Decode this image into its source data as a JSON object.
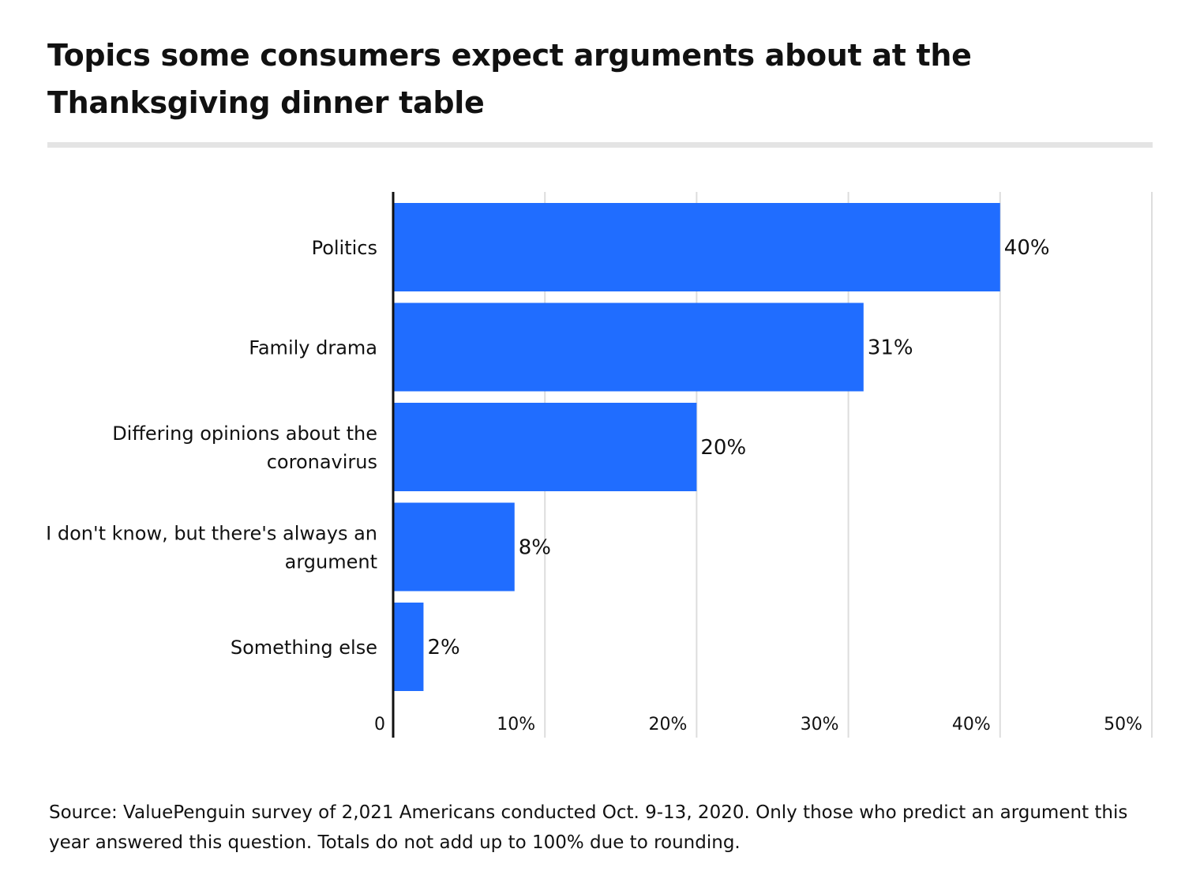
{
  "title": "Topics some consumers expect arguments about at the Thanksgiving dinner table",
  "source_note": "Source: ValuePenguin survey of 2,021 Americans conducted Oct. 9-13, 2020. Only those who predict an argument this year answered this question. Totals do not add up to 100% due to rounding.",
  "colors": {
    "bar": "#206dff",
    "grid": "#dddddd",
    "axis": "#111111",
    "rule": "#e4e4e4"
  },
  "chart_data": {
    "type": "bar",
    "orientation": "horizontal",
    "categories": [
      [
        "Politics"
      ],
      [
        "Family drama"
      ],
      [
        "Differing opinions about the",
        "coronavirus"
      ],
      [
        "I don't know, but there's always an",
        "argument"
      ],
      [
        "Something else"
      ]
    ],
    "values": [
      40,
      31,
      20,
      8,
      2
    ],
    "value_labels": [
      "40%",
      "31%",
      "20%",
      "8%",
      "2%"
    ],
    "xlim": [
      0,
      50
    ],
    "xticks": [
      0,
      10,
      20,
      30,
      40,
      50
    ],
    "xtick_labels": [
      "0",
      "10%",
      "20%",
      "30%",
      "40%",
      "50%"
    ],
    "grid": true,
    "legend": "none"
  }
}
